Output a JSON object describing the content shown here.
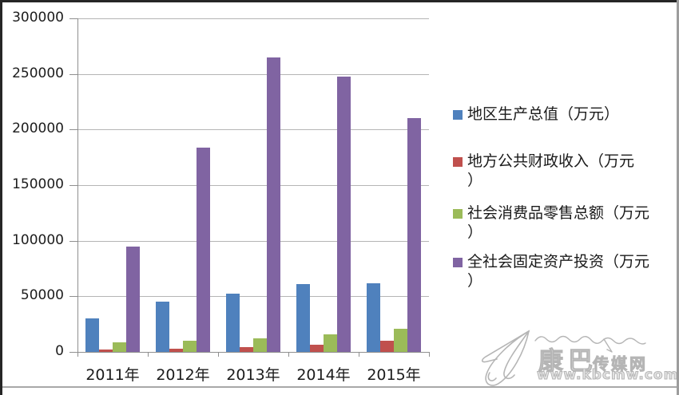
{
  "chart_data": {
    "type": "bar",
    "title": "",
    "xlabel": "",
    "ylabel": "",
    "categories": [
      "2011年",
      "2012年",
      "2013年",
      "2014年",
      "2015年"
    ],
    "series": [
      {
        "name": "地区生产总值（万元）",
        "color": "#4F81BD",
        "values": [
          30500,
          45000,
          52500,
          60700,
          61400
        ],
        "legend_lines": [
          "地区生产总值（万元）"
        ]
      },
      {
        "name": "地方公共财政收入（万元）",
        "color": "#C0504D",
        "values": [
          2000,
          2600,
          4300,
          6400,
          10300
        ],
        "legend_lines": [
          "地方公共财政收入（万元",
          "）"
        ]
      },
      {
        "name": "社会消费品零售总额（万元）",
        "color": "#9BBB59",
        "values": [
          8500,
          10200,
          12400,
          16000,
          20700
        ],
        "legend_lines": [
          "社会消费品零售总额（万元",
          "）"
        ]
      },
      {
        "name": "全社会固定资产投资（万元）",
        "color": "#8064A2",
        "values": [
          95000,
          184000,
          264500,
          247600,
          210300
        ],
        "legend_lines": [
          "全社会固定资产投资（万元",
          "）"
        ]
      }
    ],
    "ylim": [
      0,
      300000
    ],
    "ytick_labels": [
      "0",
      "50000",
      "100000",
      "150000",
      "200000",
      "250000",
      "300000"
    ],
    "grid": true,
    "legend_position": "right"
  },
  "watermark": {
    "site_name_part1": "康巴",
    "site_name_part2": "传媒网",
    "site_url": "www.kbcmw.com"
  }
}
